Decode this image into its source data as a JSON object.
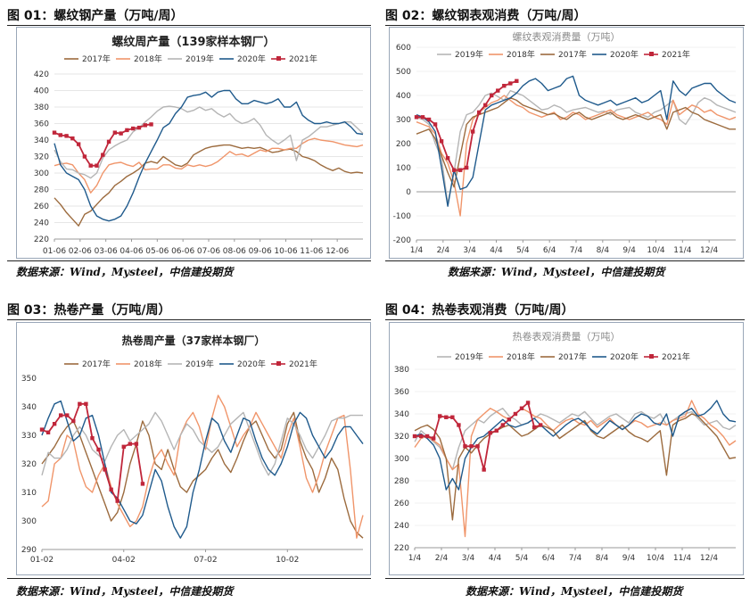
{
  "panels": [
    {
      "fig_title": "图 01：螺纹钢产量（万吨/周）",
      "source": "数据来源：Wind，Mysteel，中信建投期货"
    },
    {
      "fig_title": "图 02：螺纹钢表观消费（万吨/周）",
      "source": "数据来源：Wind，Mysteel，中信建投期货"
    },
    {
      "fig_title": "图 03：热卷产量（万吨/周）",
      "source": "数据来源：Wind，Mysteel，中信建投期货"
    },
    {
      "fig_title": "图 04：热卷表观消费（万吨/周）",
      "source": "数据来源：Wind，Mysteel，中信建投期货"
    }
  ],
  "colors": {
    "2017年": "#9c6b3e",
    "2018年": "#f0956a",
    "2019年": "#b5b5b5",
    "2020年": "#1f5a8c",
    "2021年": "#c0263a"
  },
  "chart_data": [
    {
      "type": "line",
      "title": "螺纹周产量（139家样本钢厂）",
      "xlabel": "",
      "ylabel": "",
      "ylim": [
        220,
        420
      ],
      "yticks": [
        220,
        240,
        260,
        280,
        300,
        320,
        340,
        360,
        380,
        400,
        420
      ],
      "x_tick_labels": [
        "01-06",
        "02-06",
        "03-06",
        "04-06",
        "05-06",
        "06-06",
        "07-06",
        "08-06",
        "09-06",
        "10-06",
        "11-06",
        "12-06"
      ],
      "x_weeks": 52,
      "legend": "top",
      "series": [
        {
          "name": "2017年",
          "values": [
            270,
            262,
            252,
            244,
            236,
            250,
            254,
            262,
            270,
            276,
            285,
            290,
            296,
            300,
            305,
            312,
            314,
            312,
            320,
            315,
            310,
            308,
            312,
            322,
            326,
            330,
            332,
            333,
            334,
            334,
            332,
            330,
            331,
            330,
            331,
            328,
            325,
            326,
            328,
            329,
            326,
            320,
            318,
            315,
            310,
            306,
            303,
            306,
            302,
            300,
            301,
            300
          ]
        },
        {
          "name": "2018年",
          "values": [
            309,
            311,
            312,
            310,
            300,
            292,
            276,
            285,
            300,
            310,
            312,
            313,
            310,
            308,
            313,
            304,
            305,
            305,
            310,
            310,
            306,
            305,
            310,
            308,
            310,
            308,
            310,
            314,
            320,
            326,
            322,
            323,
            320,
            324,
            328,
            326,
            330,
            330,
            328,
            330,
            330,
            336,
            340,
            342,
            340,
            339,
            338,
            336,
            334,
            333,
            332,
            334
          ]
        },
        {
          "name": "2019年",
          "values": [
            328,
            314,
            305,
            304,
            300,
            298,
            294,
            300,
            318,
            328,
            333,
            337,
            340,
            350,
            355,
            362,
            368,
            375,
            380,
            381,
            380,
            378,
            374,
            376,
            380,
            376,
            378,
            372,
            368,
            372,
            364,
            360,
            362,
            366,
            358,
            346,
            340,
            335,
            340,
            346,
            315,
            340,
            344,
            350,
            356,
            356,
            358,
            360,
            362,
            362,
            355,
            348
          ]
        },
        {
          "name": "2020年",
          "values": [
            336,
            310,
            300,
            296,
            292,
            280,
            260,
            248,
            244,
            242,
            244,
            248,
            260,
            276,
            295,
            312,
            326,
            340,
            355,
            360,
            372,
            380,
            392,
            394,
            395,
            398,
            392,
            398,
            400,
            400,
            390,
            384,
            384,
            388,
            386,
            384,
            386,
            390,
            380,
            380,
            386,
            370,
            364,
            360,
            360,
            362,
            360,
            360,
            362,
            356,
            348,
            347
          ]
        },
        {
          "name": "2021年",
          "values": [
            349,
            346,
            345,
            342,
            335,
            320,
            309,
            309,
            322,
            338,
            349,
            348,
            352,
            354,
            355,
            358,
            359
          ]
        }
      ]
    },
    {
      "type": "line",
      "title": "螺纹表观消费量（万吨）",
      "xlabel": "",
      "ylabel": "",
      "ylim": [
        -200,
        600
      ],
      "yticks": [
        -200,
        -100,
        0,
        100,
        200,
        300,
        400,
        500,
        600
      ],
      "x_tick_labels": [
        "1/4",
        "2/4",
        "3/4",
        "4/4",
        "5/4",
        "6/4",
        "7/4",
        "8/4",
        "9/4",
        "10/4",
        "11/4",
        "12/4"
      ],
      "x_weeks": 52,
      "legend": "top",
      "series": [
        {
          "name": "2019年",
          "values": [
            310,
            300,
            280,
            200,
            140,
            -50,
            80,
            250,
            320,
            330,
            360,
            400,
            410,
            395,
            380,
            420,
            410,
            400,
            380,
            360,
            340,
            345,
            360,
            350,
            330,
            340,
            345,
            350,
            340,
            330,
            335,
            320,
            340,
            345,
            350,
            330,
            320,
            310,
            330,
            340,
            360,
            380,
            300,
            280,
            320,
            370,
            390,
            380,
            360,
            350,
            340,
            330
          ]
        },
        {
          "name": "2018年",
          "values": [
            290,
            280,
            270,
            240,
            160,
            120,
            40,
            -100,
            200,
            300,
            330,
            350,
            370,
            380,
            400,
            380,
            360,
            350,
            330,
            320,
            310,
            320,
            330,
            300,
            310,
            330,
            320,
            300,
            310,
            320,
            330,
            340,
            320,
            310,
            300,
            310,
            320,
            330,
            310,
            300,
            280,
            380,
            320,
            340,
            360,
            350,
            330,
            340,
            320,
            310,
            300,
            310
          ]
        },
        {
          "name": "2017年",
          "values": [
            240,
            250,
            260,
            220,
            150,
            80,
            20,
            150,
            280,
            310,
            320,
            330,
            340,
            350,
            370,
            390,
            380,
            360,
            350,
            340,
            330,
            320,
            325,
            310,
            300,
            320,
            330,
            310,
            300,
            310,
            320,
            330,
            310,
            300,
            310,
            320,
            310,
            300,
            310,
            320,
            260,
            330,
            340,
            350,
            330,
            320,
            300,
            290,
            280,
            270,
            260,
            260
          ]
        },
        {
          "name": "2020年",
          "values": [
            320,
            310,
            290,
            250,
            100,
            -60,
            90,
            10,
            20,
            60,
            200,
            340,
            360,
            370,
            380,
            390,
            410,
            440,
            460,
            470,
            450,
            420,
            430,
            440,
            470,
            480,
            400,
            380,
            370,
            360,
            370,
            380,
            360,
            370,
            380,
            390,
            370,
            380,
            400,
            420,
            300,
            460,
            420,
            400,
            430,
            440,
            450,
            450,
            420,
            400,
            380,
            370
          ]
        },
        {
          "name": "2021年",
          "values": [
            310,
            310,
            300,
            280,
            210,
            140,
            90,
            90,
            100,
            250,
            330,
            360,
            400,
            420,
            440,
            450,
            460
          ]
        }
      ]
    },
    {
      "type": "line",
      "title": "热卷周产量（37家样本钢厂）",
      "xlabel": "",
      "ylabel": "",
      "ylim": [
        290,
        350
      ],
      "yticks": [
        290,
        300,
        310,
        320,
        330,
        340,
        350
      ],
      "x_tick_labels": [
        "01-02",
        "04-02",
        "07-02",
        "10-02"
      ],
      "x_weeks": 52,
      "legend": "top",
      "series": [
        {
          "name": "2017年",
          "values": [
            320,
            323,
            326,
            330,
            333,
            335,
            330,
            324,
            318,
            312,
            306,
            300,
            303,
            310,
            320,
            327,
            335,
            330,
            320,
            318,
            325,
            318,
            312,
            310,
            314,
            316,
            318,
            322,
            325,
            320,
            317,
            322,
            328,
            333,
            335,
            330,
            325,
            322,
            325,
            334,
            338,
            328,
            322,
            318,
            310,
            315,
            322,
            318,
            308,
            300,
            296,
            294
          ]
        },
        {
          "name": "2018年",
          "values": [
            305,
            307,
            320,
            322,
            330,
            328,
            318,
            312,
            310,
            316,
            320,
            312,
            306,
            302,
            298,
            300,
            305,
            315,
            322,
            325,
            320,
            316,
            330,
            335,
            338,
            333,
            325,
            336,
            344,
            340,
            333,
            326,
            330,
            333,
            338,
            334,
            330,
            326,
            322,
            330,
            336,
            326,
            315,
            310,
            316,
            324,
            330,
            336,
            337,
            318,
            294,
            302
          ]
        },
        {
          "name": "2019年",
          "values": [
            316,
            324,
            322,
            322,
            325,
            330,
            333,
            330,
            325,
            323,
            321,
            326,
            330,
            332,
            328,
            330,
            332,
            334,
            338,
            335,
            330,
            325,
            330,
            334,
            332,
            328,
            326,
            324,
            326,
            330,
            334,
            336,
            338,
            332,
            326,
            320,
            316,
            320,
            328,
            336,
            334,
            330,
            325,
            322,
            326,
            330,
            335,
            336,
            336,
            337,
            337,
            337
          ]
        },
        {
          "name": "2020年",
          "values": [
            330,
            336,
            341,
            342,
            335,
            328,
            330,
            336,
            337,
            330,
            320,
            310,
            308,
            304,
            300,
            299,
            302,
            310,
            318,
            314,
            305,
            298,
            294,
            298,
            310,
            318,
            328,
            336,
            334,
            328,
            324,
            330,
            336,
            335,
            328,
            322,
            318,
            316,
            320,
            326,
            334,
            338,
            336,
            330,
            326,
            322,
            325,
            330,
            333,
            333,
            330,
            327
          ]
        },
        {
          "name": "2021年",
          "values": [
            332,
            331,
            334,
            337,
            337,
            335,
            341,
            341,
            329,
            325,
            318,
            311,
            307,
            326,
            327,
            327,
            313
          ]
        }
      ]
    },
    {
      "type": "line",
      "title": "热卷表观消费量（万吨）",
      "xlabel": "",
      "ylabel": "",
      "ylim": [
        220,
        380
      ],
      "yticks": [
        220,
        240,
        260,
        280,
        300,
        320,
        340,
        360,
        380
      ],
      "x_tick_labels": [
        "1/4",
        "2/4",
        "3/4",
        "4/4",
        "5/4",
        "6/4",
        "7/4",
        "8/4",
        "9/4",
        "10/4",
        "11/4",
        "12/4"
      ],
      "x_weeks": 52,
      "legend": "top",
      "series": [
        {
          "name": "2019年",
          "values": [
            315,
            325,
            320,
            315,
            310,
            300,
            290,
            310,
            325,
            330,
            335,
            332,
            338,
            342,
            345,
            338,
            335,
            330,
            332,
            336,
            340,
            338,
            335,
            332,
            336,
            340,
            338,
            342,
            336,
            330,
            334,
            338,
            340,
            336,
            332,
            340,
            342,
            338,
            336,
            340,
            330,
            334,
            338,
            340,
            342,
            336,
            330,
            332,
            334,
            328,
            326,
            330
          ]
        },
        {
          "name": "2018年",
          "values": [
            310,
            318,
            320,
            316,
            312,
            300,
            290,
            295,
            230,
            320,
            335,
            340,
            345,
            342,
            338,
            335,
            340,
            345,
            342,
            338,
            336,
            330,
            325,
            330,
            334,
            336,
            332,
            330,
            334,
            328,
            332,
            336,
            330,
            326,
            330,
            334,
            332,
            328,
            330,
            332,
            330,
            334,
            336,
            338,
            352,
            340,
            336,
            330,
            326,
            320,
            312,
            316
          ]
        },
        {
          "name": "2017年",
          "values": [
            325,
            328,
            330,
            326,
            318,
            300,
            245,
            300,
            310,
            305,
            312,
            318,
            322,
            325,
            328,
            330,
            325,
            320,
            322,
            326,
            330,
            328,
            325,
            318,
            322,
            326,
            330,
            334,
            325,
            320,
            318,
            322,
            326,
            330,
            324,
            320,
            318,
            315,
            320,
            325,
            285,
            330,
            334,
            336,
            340,
            338,
            332,
            326,
            320,
            310,
            300,
            301
          ]
        },
        {
          "name": "2020年",
          "values": [
            320,
            322,
            318,
            312,
            300,
            272,
            282,
            272,
            300,
            310,
            318,
            320,
            325,
            330,
            335,
            330,
            328,
            330,
            332,
            336,
            330,
            325,
            320,
            325,
            330,
            334,
            336,
            332,
            326,
            322,
            328,
            334,
            330,
            326,
            330,
            336,
            340,
            338,
            332,
            330,
            340,
            320,
            338,
            342,
            345,
            338,
            340,
            345,
            352,
            340,
            334,
            333
          ]
        },
        {
          "name": "2021年",
          "values": [
            320,
            320,
            320,
            318,
            338,
            337,
            337,
            330,
            311,
            311,
            311,
            290,
            323,
            325,
            330,
            335,
            340,
            345,
            350,
            328,
            330
          ]
        }
      ]
    }
  ]
}
